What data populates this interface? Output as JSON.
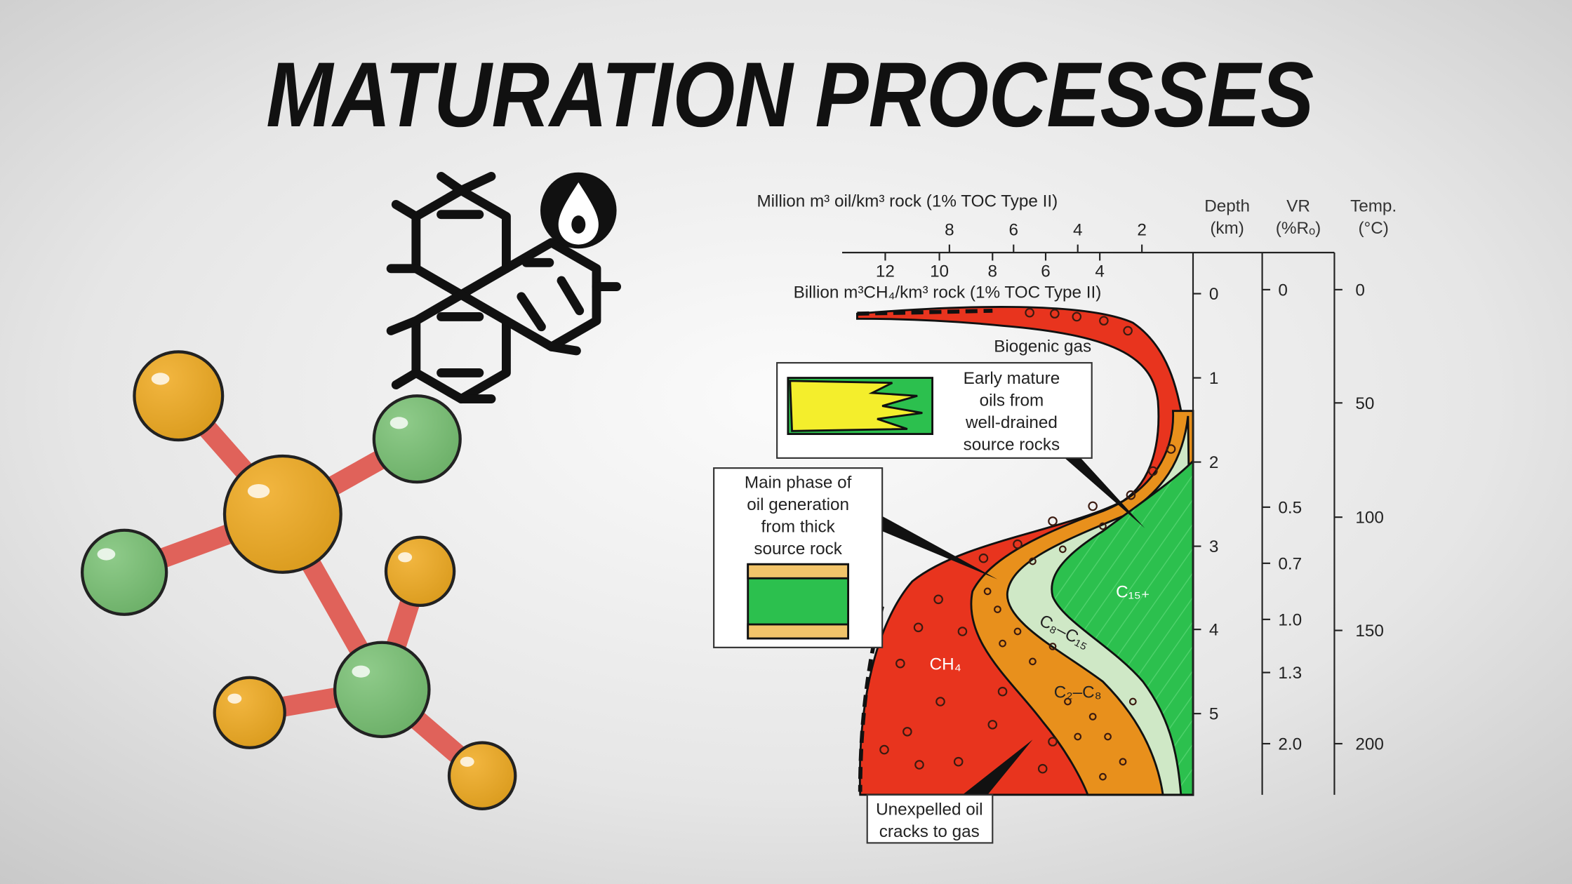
{
  "title": "MATURATION PROCESSES",
  "diagram": {
    "oil_axis": {
      "label": "Million m³ oil/km³ rock (1% TOC Type II)",
      "ticks": [
        "8",
        "6",
        "4",
        "2"
      ]
    },
    "gas_axis": {
      "label": "Billion m³CH₄/km³ rock (1% TOC Type II)",
      "ticks": [
        "12",
        "10",
        "8",
        "6",
        "4"
      ]
    },
    "depth": {
      "header": [
        "Depth",
        "(km)"
      ],
      "ticks": [
        "0",
        "1",
        "2",
        "3",
        "4",
        "5"
      ]
    },
    "vr": {
      "header": [
        "VR",
        "(%Rₒ)"
      ],
      "ticks": [
        "0",
        "0.5",
        "0.7",
        "1.0",
        "1.3",
        "2.0"
      ]
    },
    "temp": {
      "header": [
        "Temp.",
        "(°C)"
      ],
      "ticks": [
        "0",
        "50",
        "100",
        "150",
        "200"
      ]
    },
    "zones": {
      "biogenic": "Biogenic gas",
      "c15": "C₁₅₊",
      "c8": "C₈–C₁₅",
      "c2": "C₂–C₈",
      "ch4": "CH₄"
    },
    "callouts": {
      "early": [
        "Early mature",
        "oils from",
        "well-drained",
        "source rocks"
      ],
      "main": [
        "Main phase of",
        "oil generation",
        "from thick",
        "source rock"
      ],
      "unexpelled": [
        "Unexpelled oil",
        "cracks to gas"
      ]
    }
  }
}
